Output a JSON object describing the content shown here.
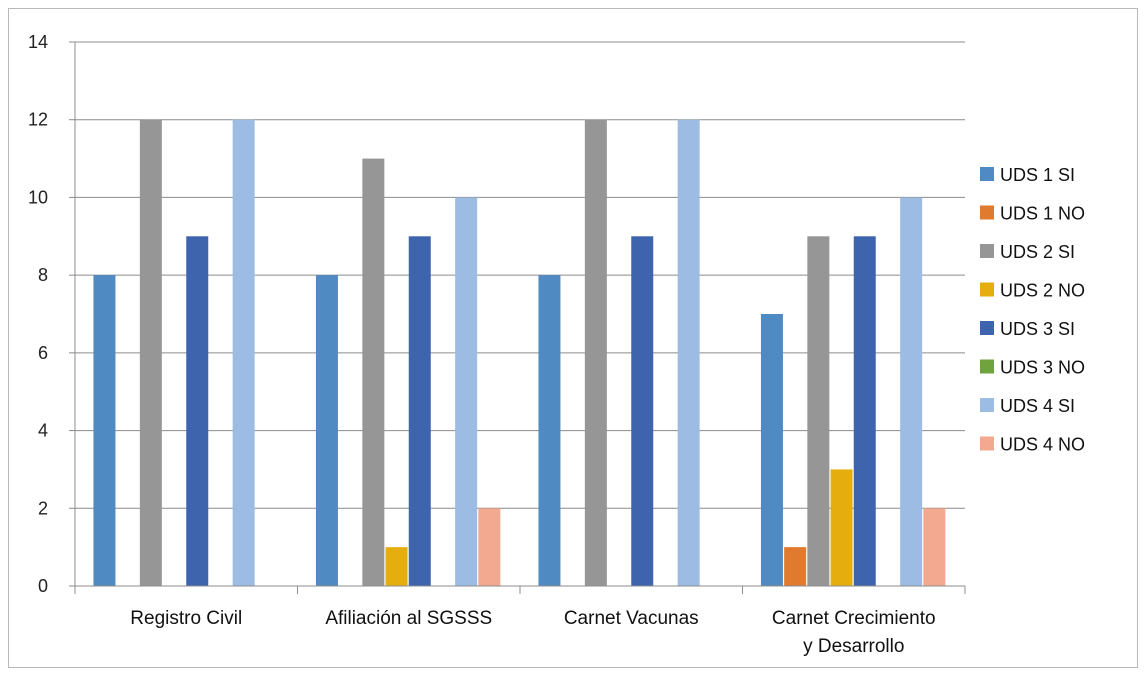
{
  "chart_data": {
    "type": "bar",
    "categories": [
      "Registro Civil",
      "Afiliación al SGSSS",
      "Carnet Vacunas",
      "Carnet Crecimiento y Desarrollo"
    ],
    "category_lines": [
      [
        "Registro Civil"
      ],
      [
        "Afiliación al SGSSS"
      ],
      [
        "Carnet Vacunas"
      ],
      [
        "Carnet Crecimiento",
        "y Desarrollo"
      ]
    ],
    "series": [
      {
        "name": "UDS 1 SI",
        "color": "#4F8BC2",
        "values": [
          8,
          8,
          8,
          7
        ]
      },
      {
        "name": "UDS 1 NO",
        "color": "#E07A2E",
        "values": [
          0,
          0,
          0,
          1
        ]
      },
      {
        "name": "UDS 2 SI",
        "color": "#969696",
        "values": [
          12,
          11,
          12,
          9
        ]
      },
      {
        "name": "UDS 2 NO",
        "color": "#E5AE0E",
        "values": [
          0,
          1,
          0,
          3
        ]
      },
      {
        "name": "UDS 3 SI",
        "color": "#3E64AE",
        "values": [
          9,
          9,
          9,
          9
        ]
      },
      {
        "name": "UDS 3 NO",
        "color": "#6FA33E",
        "values": [
          0,
          0,
          0,
          0
        ]
      },
      {
        "name": "UDS 4 SI",
        "color": "#9CBCE3",
        "values": [
          12,
          10,
          12,
          10
        ]
      },
      {
        "name": "UDS 4 NO",
        "color": "#F2A98F",
        "values": [
          0,
          2,
          0,
          2
        ]
      }
    ],
    "ylim": [
      0,
      14
    ],
    "yticks": [
      "0",
      "2",
      "4",
      "6",
      "8",
      "10",
      "12",
      "14"
    ],
    "grid": true,
    "legend_position": "right"
  }
}
